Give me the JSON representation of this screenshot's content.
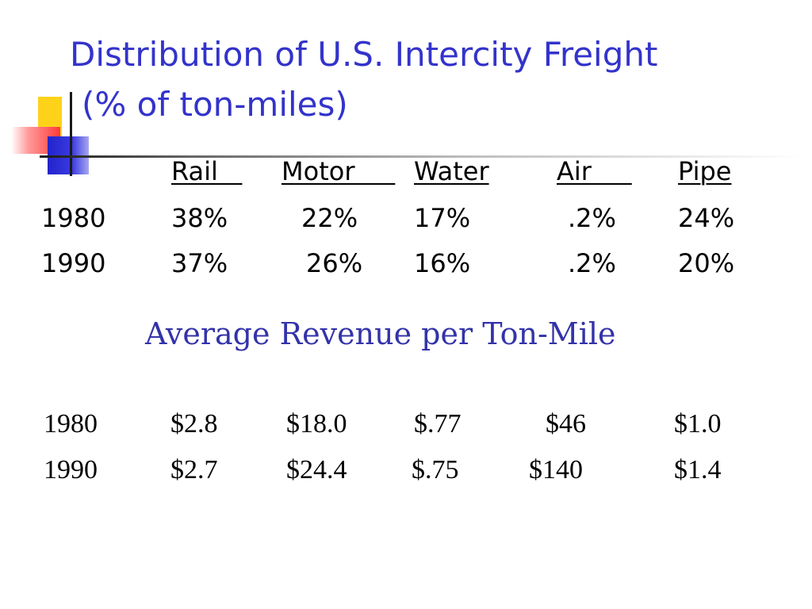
{
  "title": {
    "line1": "Distribution of U.S. Intercity Freight",
    "line2": "(% of ton-miles)"
  },
  "freight_table": {
    "headers": [
      "Rail   ",
      "Motor     ",
      "Water",
      "Air     ",
      "Pipe"
    ],
    "rows": [
      {
        "year": "1980",
        "values": [
          "38%",
          "22%",
          "17%",
          ".2%",
          "24%"
        ]
      },
      {
        "year": "1990",
        "values": [
          "37%",
          "26%",
          "16%",
          ".2%",
          "20%"
        ]
      }
    ]
  },
  "revenue": {
    "heading": "Average Revenue per Ton-Mile",
    "rows": [
      {
        "year": "1980",
        "values": [
          "$2.8",
          "$18.0",
          "$.77",
          "$46",
          "$1.0"
        ]
      },
      {
        "year": "1990",
        "values": [
          "$2.7",
          "$24.4",
          "$.75",
          "$140",
          "$1.4"
        ]
      }
    ]
  },
  "colors": {
    "title": "#3333cc",
    "accent_yellow": "#ffd21a",
    "accent_red": "#ff3a3a",
    "accent_blue": "#2323cc"
  }
}
